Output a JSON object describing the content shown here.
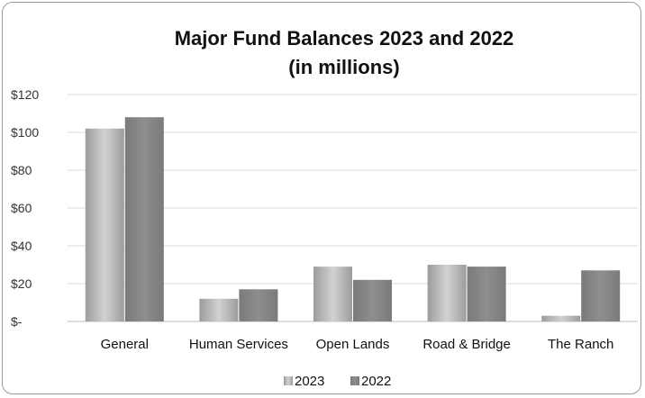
{
  "chart_data": {
    "type": "bar",
    "title": "Major Fund Balances 2023 and 2022",
    "subtitle": "(in millions)",
    "categories": [
      "General",
      "Human Services",
      "Open Lands",
      "Road & Bridge",
      "The Ranch"
    ],
    "series": [
      {
        "name": "2023",
        "values": [
          102,
          12,
          29,
          30,
          3
        ],
        "color": "#b8b8b8"
      },
      {
        "name": "2022",
        "values": [
          108,
          17,
          22,
          29,
          27
        ],
        "color": "#878787"
      }
    ],
    "ylim": [
      0,
      120
    ],
    "yticks": [
      0,
      20,
      40,
      60,
      80,
      100,
      120
    ],
    "ytick_labels": [
      "$-",
      "$20",
      "$40",
      "$60",
      "$80",
      "$100",
      "$120"
    ],
    "xlabel": "",
    "ylabel": "",
    "grid": true,
    "legend": "bottom"
  }
}
